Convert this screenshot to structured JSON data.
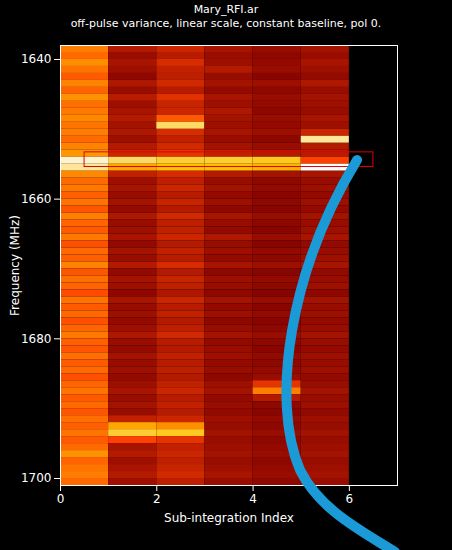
{
  "chart_data": {
    "type": "heatmap",
    "title": "Mary_RFI.ar",
    "subtitle": "off-pulse variance, linear scale, constant baseline, pol 0.",
    "x_label": "Sub-integration Index",
    "y_label": "Frequency (MHz)",
    "xlim": [
      0,
      7
    ],
    "ylim": [
      1638,
      1701
    ],
    "xticks": [
      0,
      2,
      4,
      6
    ],
    "yticks": [
      1640,
      1660,
      1680,
      1700
    ],
    "heatmap": {
      "zlim": [
        0,
        1
      ],
      "x_bins": [
        0,
        1,
        2,
        3,
        4,
        5,
        6
      ],
      "y_bins": [
        1638,
        1639,
        1640,
        1641,
        1642,
        1643,
        1644,
        1645,
        1646,
        1647,
        1648,
        1649,
        1650,
        1651,
        1652,
        1653,
        1654,
        1655,
        1656,
        1657,
        1658,
        1659,
        1660,
        1661,
        1662,
        1663,
        1664,
        1665,
        1666,
        1667,
        1668,
        1669,
        1670,
        1671,
        1672,
        1673,
        1674,
        1675,
        1676,
        1677,
        1678,
        1679,
        1680,
        1681,
        1682,
        1683,
        1684,
        1685,
        1686,
        1687,
        1688,
        1689,
        1690,
        1691,
        1692,
        1693,
        1694,
        1695,
        1696,
        1697,
        1698,
        1699,
        1700,
        1701
      ],
      "values": [
        [
          0.62,
          0.35,
          0.4,
          0.33,
          0.3,
          0.32
        ],
        [
          0.58,
          0.3,
          0.36,
          0.3,
          0.28,
          0.3
        ],
        [
          0.65,
          0.33,
          0.42,
          0.31,
          0.29,
          0.33
        ],
        [
          0.6,
          0.31,
          0.38,
          0.35,
          0.3,
          0.31
        ],
        [
          0.55,
          0.28,
          0.37,
          0.3,
          0.27,
          0.29
        ],
        [
          0.63,
          0.34,
          0.41,
          0.32,
          0.31,
          0.34
        ],
        [
          0.57,
          0.3,
          0.36,
          0.29,
          0.28,
          0.3
        ],
        [
          0.66,
          0.36,
          0.44,
          0.33,
          0.3,
          0.32
        ],
        [
          0.59,
          0.31,
          0.39,
          0.31,
          0.29,
          0.31
        ],
        [
          0.61,
          0.33,
          0.4,
          0.34,
          0.28,
          0.3
        ],
        [
          0.64,
          0.35,
          0.55,
          0.32,
          0.3,
          0.33
        ],
        [
          0.6,
          0.32,
          0.85,
          0.31,
          0.29,
          0.31
        ],
        [
          0.62,
          0.34,
          0.42,
          0.33,
          0.31,
          0.4
        ],
        [
          0.58,
          0.31,
          0.38,
          0.3,
          0.28,
          0.9
        ],
        [
          0.63,
          0.35,
          0.41,
          0.32,
          0.3,
          0.35
        ],
        [
          0.67,
          0.4,
          0.45,
          0.38,
          0.35,
          0.36
        ],
        [
          0.95,
          0.85,
          0.8,
          0.8,
          0.78,
          0.5
        ],
        [
          0.9,
          0.7,
          0.75,
          0.75,
          0.72,
          1.0
        ],
        [
          0.64,
          0.38,
          0.42,
          0.35,
          0.32,
          0.33
        ],
        [
          0.58,
          0.31,
          0.37,
          0.3,
          0.28,
          0.3
        ],
        [
          0.61,
          0.33,
          0.4,
          0.32,
          0.29,
          0.31
        ],
        [
          0.56,
          0.3,
          0.36,
          0.29,
          0.27,
          0.29
        ],
        [
          0.6,
          0.32,
          0.39,
          0.31,
          0.28,
          0.31
        ],
        [
          0.54,
          0.29,
          0.35,
          0.28,
          0.27,
          0.29
        ],
        [
          0.62,
          0.34,
          0.41,
          0.33,
          0.3,
          0.32
        ],
        [
          0.57,
          0.3,
          0.37,
          0.3,
          0.28,
          0.3
        ],
        [
          0.55,
          0.31,
          0.38,
          0.29,
          0.27,
          0.31
        ],
        [
          0.61,
          0.33,
          0.4,
          0.34,
          0.3,
          0.33
        ],
        [
          0.53,
          0.29,
          0.35,
          0.3,
          0.27,
          0.29
        ],
        [
          0.58,
          0.32,
          0.38,
          0.31,
          0.29,
          0.3
        ],
        [
          0.56,
          0.3,
          0.36,
          0.29,
          0.28,
          0.31
        ],
        [
          0.63,
          0.35,
          0.42,
          0.33,
          0.31,
          0.33
        ],
        [
          0.54,
          0.29,
          0.35,
          0.28,
          0.27,
          0.29
        ],
        [
          0.59,
          0.32,
          0.39,
          0.31,
          0.29,
          0.3
        ],
        [
          0.57,
          0.31,
          0.37,
          0.3,
          0.28,
          0.31
        ],
        [
          0.52,
          0.28,
          0.34,
          0.28,
          0.26,
          0.28
        ],
        [
          0.6,
          0.33,
          0.4,
          0.32,
          0.3,
          0.32
        ],
        [
          0.55,
          0.3,
          0.36,
          0.29,
          0.27,
          0.3
        ],
        [
          0.58,
          0.31,
          0.38,
          0.31,
          0.29,
          0.31
        ],
        [
          0.53,
          0.29,
          0.35,
          0.28,
          0.27,
          0.29
        ],
        [
          0.57,
          0.31,
          0.37,
          0.3,
          0.28,
          0.3
        ],
        [
          0.61,
          0.34,
          0.41,
          0.32,
          0.3,
          0.32
        ],
        [
          0.56,
          0.3,
          0.36,
          0.29,
          0.28,
          0.3
        ],
        [
          0.54,
          0.29,
          0.35,
          0.3,
          0.27,
          0.29
        ],
        [
          0.59,
          0.32,
          0.38,
          0.31,
          0.29,
          0.31
        ],
        [
          0.55,
          0.3,
          0.36,
          0.29,
          0.28,
          0.3
        ],
        [
          0.58,
          0.31,
          0.37,
          0.3,
          0.29,
          0.31
        ],
        [
          0.53,
          0.29,
          0.35,
          0.28,
          0.3,
          0.29
        ],
        [
          0.57,
          0.31,
          0.38,
          0.31,
          0.45,
          0.3
        ],
        [
          0.6,
          0.33,
          0.4,
          0.32,
          0.62,
          0.32
        ],
        [
          0.55,
          0.3,
          0.36,
          0.29,
          0.35,
          0.3
        ],
        [
          0.58,
          0.32,
          0.38,
          0.3,
          0.28,
          0.31
        ],
        [
          0.54,
          0.3,
          0.36,
          0.29,
          0.27,
          0.29
        ],
        [
          0.59,
          0.38,
          0.4,
          0.31,
          0.29,
          0.31
        ],
        [
          0.56,
          0.7,
          0.65,
          0.3,
          0.28,
          0.3
        ],
        [
          0.6,
          0.8,
          0.78,
          0.32,
          0.3,
          0.32
        ],
        [
          0.55,
          0.5,
          0.45,
          0.3,
          0.28,
          0.3
        ],
        [
          0.58,
          0.33,
          0.38,
          0.31,
          0.29,
          0.31
        ],
        [
          0.66,
          0.35,
          0.4,
          0.32,
          0.3,
          0.32
        ],
        [
          0.57,
          0.31,
          0.37,
          0.3,
          0.28,
          0.3
        ],
        [
          0.6,
          0.33,
          0.39,
          0.31,
          0.29,
          0.31
        ],
        [
          0.62,
          0.35,
          0.41,
          0.33,
          0.3,
          0.32
        ],
        [
          0.58,
          0.31,
          0.37,
          0.3,
          0.28,
          0.3
        ]
      ]
    },
    "annotations": [
      {
        "type": "rect",
        "x": [
          0.5,
          6.5
        ],
        "y": [
          1653.3,
          1655.4
        ],
        "color": "#e00000"
      }
    ]
  }
}
